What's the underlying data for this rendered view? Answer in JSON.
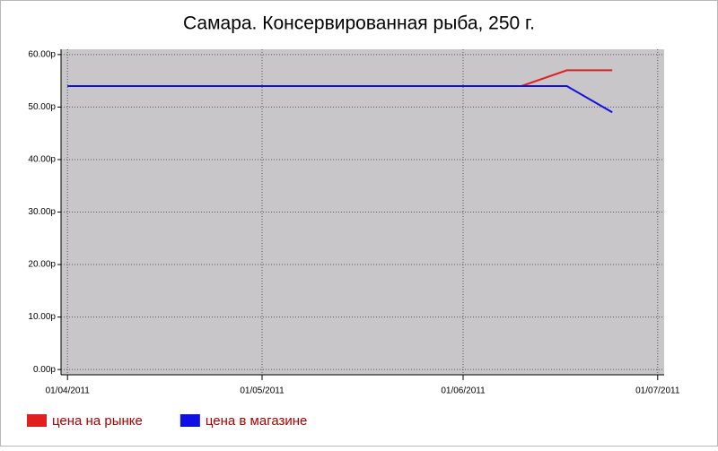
{
  "chart_data": {
    "type": "line",
    "title": "Самара. Консервированная рыба, 250 г.",
    "x": [
      "01/04/2011",
      "08/04/2011",
      "15/04/2011",
      "22/04/2011",
      "29/04/2011",
      "06/05/2011",
      "13/05/2011",
      "20/05/2011",
      "27/05/2011",
      "03/06/2011",
      "10/06/2011",
      "17/06/2011",
      "24/06/2011"
    ],
    "series": [
      {
        "name": "цена на рынке",
        "color": "#e02020",
        "values": [
          54,
          54,
          54,
          54,
          54,
          54,
          54,
          54,
          54,
          54,
          54,
          57,
          57
        ]
      },
      {
        "name": "цена в магазине",
        "color": "#1010e0",
        "values": [
          54,
          54,
          54,
          54,
          54,
          54,
          54,
          54,
          54,
          54,
          54,
          54,
          49
        ]
      }
    ],
    "xlim": [
      "31/03/2011",
      "02/07/2011"
    ],
    "xticks": [
      "01/04/2011",
      "01/05/2011",
      "01/06/2011",
      "01/07/2011"
    ],
    "ylim": [
      -1,
      61
    ],
    "yticks": [
      {
        "value": 0,
        "label": "0.00р"
      },
      {
        "value": 10,
        "label": "10.00р"
      },
      {
        "value": 20,
        "label": "20.00р"
      },
      {
        "value": 30,
        "label": "30.00р"
      },
      {
        "value": 40,
        "label": "40.00р"
      },
      {
        "value": 50,
        "label": "50.00р"
      },
      {
        "value": 60,
        "label": "60.00р"
      }
    ],
    "grid": true,
    "legend": "bottom-left"
  }
}
